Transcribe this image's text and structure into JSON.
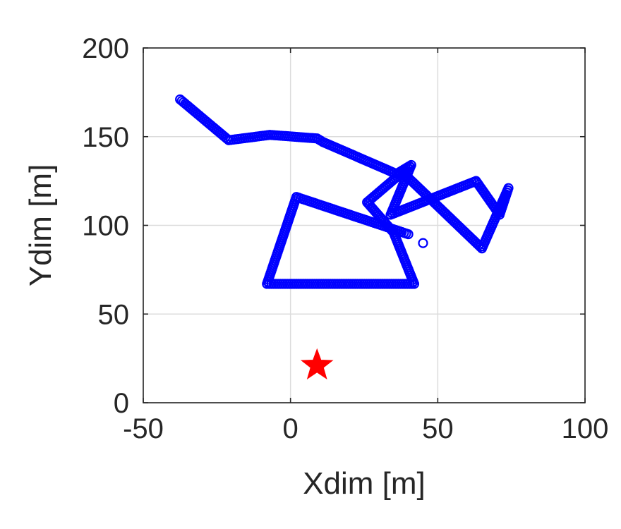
{
  "chart_data": {
    "type": "scatter",
    "title": "",
    "xlabel": "Xdim [m]",
    "ylabel": "Ydim [m]",
    "xlim": [
      -50,
      100
    ],
    "ylim": [
      0,
      200
    ],
    "xticks": [
      -50,
      0,
      50,
      100
    ],
    "yticks": [
      0,
      50,
      100,
      150,
      200
    ],
    "xtick_labels": [
      "-50",
      "0",
      "50",
      "100"
    ],
    "ytick_labels": [
      "0",
      "50",
      "100",
      "150",
      "200"
    ],
    "grid": true,
    "legend": "none",
    "trajectory": {
      "color": "#0000ff",
      "marker": "circle",
      "waypoints": [
        {
          "x": -37.5,
          "y": 171
        },
        {
          "x": -21,
          "y": 148
        },
        {
          "x": -7,
          "y": 151
        },
        {
          "x": 9,
          "y": 149
        },
        {
          "x": 11,
          "y": 147
        },
        {
          "x": 36,
          "y": 129
        },
        {
          "x": 41,
          "y": 134
        },
        {
          "x": 34,
          "y": 106
        },
        {
          "x": 63,
          "y": 125
        },
        {
          "x": 71,
          "y": 106
        },
        {
          "x": 74,
          "y": 121
        },
        {
          "x": 65,
          "y": 87
        },
        {
          "x": 38,
          "y": 130
        },
        {
          "x": 26,
          "y": 113
        },
        {
          "x": 35,
          "y": 96
        },
        {
          "x": 42,
          "y": 67
        },
        {
          "x": -8,
          "y": 67
        },
        {
          "x": 2,
          "y": 116
        },
        {
          "x": 40,
          "y": 95
        }
      ],
      "isolated_points": [
        {
          "x": 45,
          "y": 90
        }
      ]
    },
    "target": {
      "x": 9,
      "y": 21,
      "marker": "star",
      "color": "#ff0000"
    }
  }
}
